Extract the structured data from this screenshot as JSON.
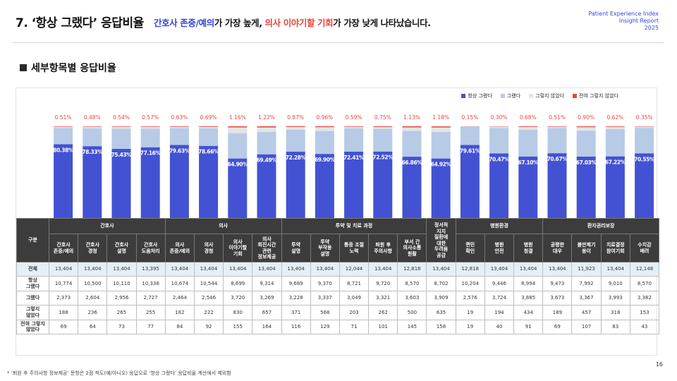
{
  "header": {
    "title": "7. ‘항상 그랬다’ 응답비율",
    "subtitle_blue": "간호사 존중/예의",
    "subtitle_mid1": "가 가장 높게, ",
    "subtitle_red": "의사 이야기할 기회",
    "subtitle_mid2": "가 가장 낮게 나타났습니다.",
    "report_line1": "Patient Experience Index",
    "report_line2": "Insight Report",
    "report_line3": "2025"
  },
  "section": {
    "title": "세부항목별 응답비율"
  },
  "colors": {
    "always": "#4352d2",
    "usually": "#b7cbe6",
    "sometimes": "#e4e4e4",
    "never": "#e8453c",
    "accent_blue": "#3546d6"
  },
  "chart_data": {
    "type": "bar",
    "stacked": true,
    "normalized": true,
    "ylim": [
      0,
      100
    ],
    "series": [
      {
        "name": "항상 그랬다",
        "key": "always",
        "values": [
          80.38,
          78.33,
          75.43,
          77.16,
          79.63,
          78.66,
          64.9,
          69.49,
          72.28,
          69.9,
          72.41,
          72.52,
          66.86,
          64.92,
          79.61,
          70.47,
          67.1,
          70.67,
          67.03,
          67.22,
          70.55
        ]
      },
      {
        "name": "그랬다",
        "key": "usually",
        "values": [
          17.7,
          19.4,
          22.1,
          20.4,
          18.4,
          19.0,
          27.7,
          24.4,
          24.1,
          25.0,
          25.3,
          24.7,
          28.1,
          29.1,
          20.1,
          27.8,
          29.0,
          27.4,
          28.2,
          29.8,
          27.8
        ]
      },
      {
        "name": "그렇지 않았다",
        "key": "sometimes",
        "values": [
          1.4,
          1.8,
          2.0,
          1.9,
          1.4,
          1.7,
          6.2,
          4.9,
          2.9,
          4.2,
          1.7,
          2.0,
          3.9,
          4.7,
          0.1,
          1.4,
          3.2,
          1.4,
          3.8,
          2.4,
          1.3
        ]
      },
      {
        "name": "전혀 그렇지 않았다",
        "key": "never",
        "values": [
          0.51,
          0.48,
          0.54,
          0.57,
          0.63,
          0.69,
          1.16,
          1.22,
          0.87,
          0.96,
          0.59,
          0.75,
          1.13,
          1.18,
          0.15,
          0.3,
          0.68,
          0.51,
          0.9,
          0.62,
          0.35
        ]
      }
    ],
    "always_labels": [
      "80.38%",
      "78.33%",
      "75.43%",
      "77.16%",
      "79.63%",
      "78.66%",
      "64.90%",
      "69.49%",
      "72.28%",
      "69.90%",
      "72.41%",
      "72.52%",
      "66.86%",
      "64.92%",
      "79.61%",
      "70.47%",
      "67.10%",
      "70.67%",
      "67.03%",
      "67.22%",
      "70.55%"
    ],
    "never_labels": [
      "0.51%",
      "0.48%",
      "0.54%",
      "0.57%",
      "0.63%",
      "0.69%",
      "1.16%",
      "1.22%",
      "0.87%",
      "0.96%",
      "0.59%",
      "0.75%",
      "1.13%",
      "1.18%",
      "0.15%",
      "0.30%",
      "0.68%",
      "0.51%",
      "0.90%",
      "0.62%",
      "0.35%"
    ],
    "legend_position": "top-right"
  },
  "table": {
    "corner_label": "구분",
    "groups": [
      {
        "label": "간호사",
        "span": 4
      },
      {
        "label": "의사",
        "span": 4
      },
      {
        "label": "투약 및 치료 과정",
        "span": 5
      },
      {
        "label": "정서적\n지지",
        "span": 1,
        "rowspan": 2,
        "sub_label": "정서적 지지\n질환에 대한 두려움 공감"
      },
      {
        "label": "병원환경",
        "span": 3
      },
      {
        "label": "환자권리보장",
        "span": 4
      }
    ],
    "group_labels": {
      "nurse": "간호사",
      "doctor": "의사",
      "medication": "투약 및 치료 과정",
      "emotional": "정서적\n지지\n질환에\n대한\n두려움\n공감",
      "environment": "병원환경",
      "rights": "환자권리보장"
    },
    "columns": [
      "간호사\n존중/예의",
      "간호사\n경청",
      "간호사\n설명",
      "간호사\n도움처리",
      "의사\n존중/예의",
      "의사\n경청",
      "의사\n이야기할\n기회",
      "의사\n회진시간\n관련\n정보제공",
      "투약\n설명",
      "투약\n부작용\n설명",
      "통증 조절\n노력",
      "퇴원 후\n주의사항",
      "부서 간\n의사소통\n원활",
      "편민\n확인",
      "병원\n안전",
      "병원\n청결",
      "공평한\n대우",
      "불만제기\n용이",
      "치료결정\n참여기회",
      "수치감\n배려"
    ],
    "rows": [
      {
        "label": "전체",
        "values": [
          "13,404",
          "13,404",
          "13,404",
          "13,395",
          "13,404",
          "13,404",
          "13,404",
          "13,404",
          "13,404",
          "13,404",
          "12,044",
          "13,404",
          "12,818",
          "13,404",
          "12,818",
          "13,404",
          "13,404",
          "13,404",
          "11,923",
          "13,404",
          "12,148"
        ]
      },
      {
        "label": "항상\n그랬다",
        "values": [
          "10,774",
          "10,500",
          "10,110",
          "10,336",
          "10,674",
          "10,544",
          "8,699",
          "9,314",
          "9,689",
          "9,370",
          "8,721",
          "9,720",
          "8,570",
          "8,702",
          "10,204",
          "9,446",
          "8,994",
          "9,473",
          "7,992",
          "9,010",
          "8,570"
        ]
      },
      {
        "label": "그랬다",
        "values": [
          "2,373",
          "2,604",
          "2,956",
          "2,727",
          "2,464",
          "2,546",
          "3,720",
          "3,269",
          "3,228",
          "3,337",
          "3,049",
          "3,321",
          "3,603",
          "3,909",
          "2,576",
          "3,724",
          "3,885",
          "3,673",
          "3,367",
          "3,993",
          "3,382"
        ]
      },
      {
        "label": "그렇지\n않았다",
        "values": [
          "188",
          "236",
          "265",
          "255",
          "182",
          "222",
          "830",
          "657",
          "371",
          "568",
          "203",
          "262",
          "500",
          "635",
          "19",
          "194",
          "434",
          "189",
          "457",
          "318",
          "153"
        ]
      },
      {
        "label": "전혀 그렇지\n않았다",
        "values": [
          "69",
          "64",
          "73",
          "77",
          "84",
          "92",
          "155",
          "164",
          "116",
          "129",
          "71",
          "101",
          "145",
          "158",
          "19",
          "40",
          "91",
          "69",
          "107",
          "83",
          "43"
        ]
      }
    ]
  },
  "footnote": "* ‘퇴원 후 주의사항 정보제공’ 문항은 2점 척도(예/아니오) 응답으로 ‘항상 그랬다’ 응답비율 계산에서 제외함",
  "page_number": "16"
}
